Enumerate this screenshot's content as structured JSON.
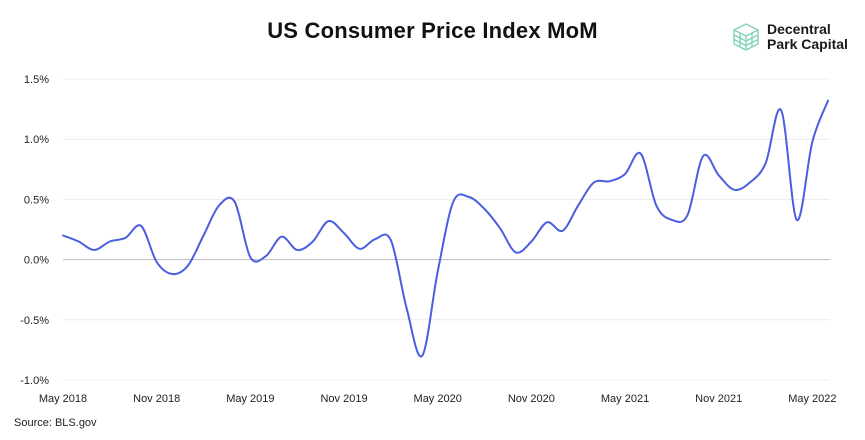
{
  "title": "US Consumer Price Index MoM",
  "brand": {
    "line1": "Decentral",
    "line2": "Park Capital",
    "icon": "stacked-cube-logo",
    "color": "#7fd1b9"
  },
  "source": "Source: BLS.gov",
  "chart_data": {
    "type": "line",
    "title": "US Consumer Price Index MoM",
    "xlabel": "",
    "ylabel": "",
    "ylim": [
      -1.0,
      1.5
    ],
    "yticks": [
      "1.5%",
      "1.0%",
      "0.5%",
      "0.0%",
      "-0.5%",
      "-1.0%"
    ],
    "ytick_values": [
      1.5,
      1.0,
      0.5,
      0.0,
      -0.5,
      -1.0
    ],
    "xtick_labels": [
      "May 2018",
      "Nov 2018",
      "May 2019",
      "Nov 2019",
      "May 2020",
      "Nov 2020",
      "May 2021",
      "Nov 2021",
      "May 2022"
    ],
    "grid": "horizontal",
    "line_color": "#4a5ee0",
    "series": [
      {
        "name": "",
        "x": [
          "May 2018",
          "Jun 2018",
          "Jul 2018",
          "Aug 2018",
          "Sep 2018",
          "Oct 2018",
          "Nov 2018",
          "Dec 2018",
          "Jan 2019",
          "Feb 2019",
          "Mar 2019",
          "Apr 2019",
          "May 2019",
          "Jun 2019",
          "Jul 2019",
          "Aug 2019",
          "Sep 2019",
          "Oct 2019",
          "Nov 2019",
          "Dec 2019",
          "Jan 2020",
          "Feb 2020",
          "Mar 2020",
          "Apr 2020",
          "May 2020",
          "Jun 2020",
          "Jul 2020",
          "Aug 2020",
          "Sep 2020",
          "Oct 2020",
          "Nov 2020",
          "Dec 2020",
          "Jan 2021",
          "Feb 2021",
          "Mar 2021",
          "Apr 2021",
          "May 2021",
          "Jun 2021",
          "Jul 2021",
          "Aug 2021",
          "Sep 2021",
          "Oct 2021",
          "Nov 2021",
          "Dec 2021",
          "Jan 2022",
          "Feb 2022",
          "Mar 2022",
          "Apr 2022",
          "May 2022",
          "Jun 2022"
        ],
        "values": [
          0.2,
          0.15,
          0.08,
          0.15,
          0.18,
          0.28,
          -0.02,
          -0.12,
          -0.05,
          0.2,
          0.45,
          0.48,
          0.02,
          0.03,
          0.19,
          0.08,
          0.15,
          0.32,
          0.22,
          0.09,
          0.17,
          0.16,
          -0.4,
          -0.8,
          -0.1,
          0.48,
          0.52,
          0.42,
          0.26,
          0.06,
          0.15,
          0.31,
          0.24,
          0.45,
          0.64,
          0.65,
          0.71,
          0.88,
          0.45,
          0.33,
          0.37,
          0.86,
          0.7,
          0.58,
          0.64,
          0.8,
          1.24,
          0.33,
          0.98,
          1.32
        ]
      }
    ]
  }
}
